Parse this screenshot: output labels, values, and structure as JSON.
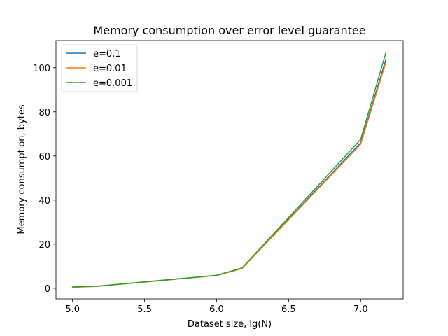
{
  "chart_data": {
    "type": "line",
    "title": "Memory consumption over error level guarantee",
    "xlabel": "Dataset size, lg(N)",
    "ylabel": "Memory consumption, bytes",
    "xlim": [
      4.885,
      7.295
    ],
    "ylim": [
      -4.8,
      112.3
    ],
    "xticks": [
      5.0,
      5.5,
      6.0,
      6.5,
      7.0
    ],
    "xtick_labels": [
      "5.0",
      "5.5",
      "6.0",
      "6.5",
      "7.0"
    ],
    "yticks": [
      0,
      20,
      40,
      60,
      80,
      100
    ],
    "ytick_labels": [
      "0",
      "20",
      "40",
      "60",
      "80",
      "100"
    ],
    "x": [
      5.0,
      5.176,
      6.0,
      6.176,
      7.0,
      7.176
    ],
    "series": [
      {
        "name": "e=0.1",
        "color": "#1f77b4",
        "values": [
          0.5,
          0.9,
          5.8,
          9.0,
          66.0,
          104.0
        ]
      },
      {
        "name": "e=0.01",
        "color": "#ff7f0e",
        "values": [
          0.5,
          0.9,
          5.8,
          8.9,
          65.3,
          102.5
        ]
      },
      {
        "name": "e=0.001",
        "color": "#2ca02c",
        "values": [
          0.6,
          1.0,
          5.9,
          9.2,
          67.5,
          107.0
        ]
      }
    ],
    "grid": false,
    "legend": "upper-left"
  }
}
